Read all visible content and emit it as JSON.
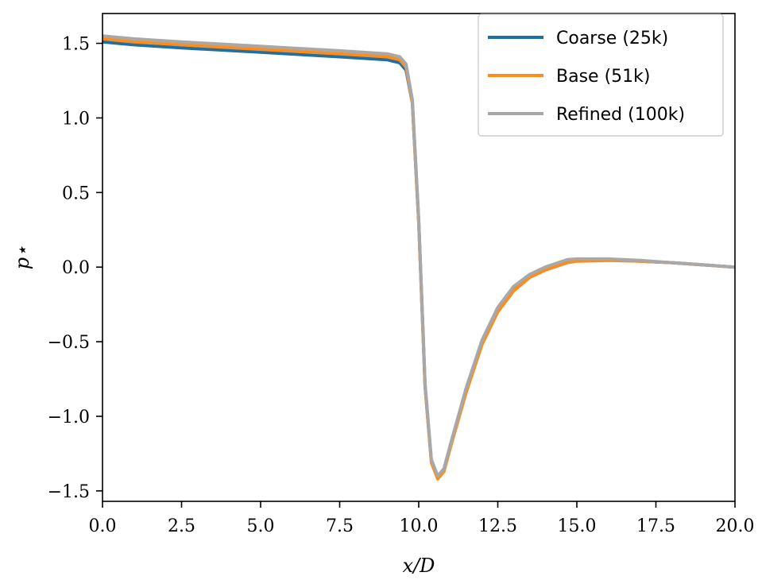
{
  "chart_data": {
    "type": "line",
    "title": "",
    "xlabel": "x/D",
    "ylabel": "p⋆",
    "xlim": [
      0,
      20
    ],
    "ylim": [
      -1.57,
      1.7
    ],
    "xticks": [
      0,
      2.5,
      5,
      7.5,
      10,
      12.5,
      15,
      17.5,
      20
    ],
    "xtick_labels": [
      "0.0",
      "2.5",
      "5.0",
      "7.5",
      "10.0",
      "12.5",
      "15.0",
      "17.5",
      "20.0"
    ],
    "yticks": [
      -1.5,
      -1.0,
      -0.5,
      0.0,
      0.5,
      1.0,
      1.5
    ],
    "ytick_labels": [
      "−1.5",
      "−1.0",
      "−0.5",
      "0.0",
      "0.5",
      "1.0",
      "1.5"
    ],
    "grid": false,
    "legend_position": "top-right",
    "series": [
      {
        "name": "Coarse (25k)",
        "color": "#1f6fa4",
        "x": [
          0,
          1,
          2.5,
          5,
          7.5,
          9,
          9.4,
          9.6,
          9.8,
          10.0,
          10.2,
          10.4,
          10.6,
          10.8,
          11.0,
          11.5,
          12.0,
          12.5,
          13.0,
          13.5,
          14.0,
          14.7,
          15.0,
          16.0,
          17.0,
          18.0,
          19.0,
          20.0
        ],
        "y": [
          1.51,
          1.49,
          1.47,
          1.44,
          1.41,
          1.39,
          1.37,
          1.32,
          1.1,
          0.3,
          -0.8,
          -1.3,
          -1.41,
          -1.36,
          -1.2,
          -0.82,
          -0.5,
          -0.28,
          -0.14,
          -0.06,
          -0.01,
          0.04,
          0.045,
          0.05,
          0.04,
          0.03,
          0.015,
          0.0
        ]
      },
      {
        "name": "Base (51k)",
        "color": "#ff8c1a",
        "x": [
          0,
          1,
          2.5,
          5,
          7.5,
          9,
          9.4,
          9.6,
          9.8,
          10.0,
          10.2,
          10.4,
          10.6,
          10.8,
          11.0,
          11.5,
          12.0,
          12.5,
          13.0,
          13.5,
          14.0,
          14.7,
          15.0,
          16.0,
          17.0,
          18.0,
          19.0,
          20.0
        ],
        "y": [
          1.53,
          1.51,
          1.49,
          1.46,
          1.43,
          1.41,
          1.39,
          1.34,
          1.1,
          0.3,
          -0.8,
          -1.31,
          -1.42,
          -1.37,
          -1.21,
          -0.84,
          -0.52,
          -0.3,
          -0.16,
          -0.07,
          -0.02,
          0.03,
          0.04,
          0.045,
          0.04,
          0.03,
          0.015,
          0.0
        ]
      },
      {
        "name": "Refined (100k)",
        "color": "#a8a8a8",
        "x": [
          0,
          1,
          2.5,
          5,
          7.5,
          9,
          9.4,
          9.6,
          9.8,
          10.0,
          10.2,
          10.4,
          10.6,
          10.8,
          11.0,
          11.5,
          12.0,
          12.5,
          13.0,
          13.5,
          14.0,
          14.7,
          15.0,
          16.0,
          17.0,
          18.0,
          19.0,
          20.0
        ],
        "y": [
          1.55,
          1.53,
          1.51,
          1.48,
          1.45,
          1.43,
          1.41,
          1.36,
          1.12,
          0.32,
          -0.78,
          -1.29,
          -1.4,
          -1.35,
          -1.19,
          -0.81,
          -0.49,
          -0.27,
          -0.13,
          -0.05,
          0.0,
          0.05,
          0.055,
          0.055,
          0.045,
          0.03,
          0.015,
          0.0
        ]
      }
    ]
  }
}
